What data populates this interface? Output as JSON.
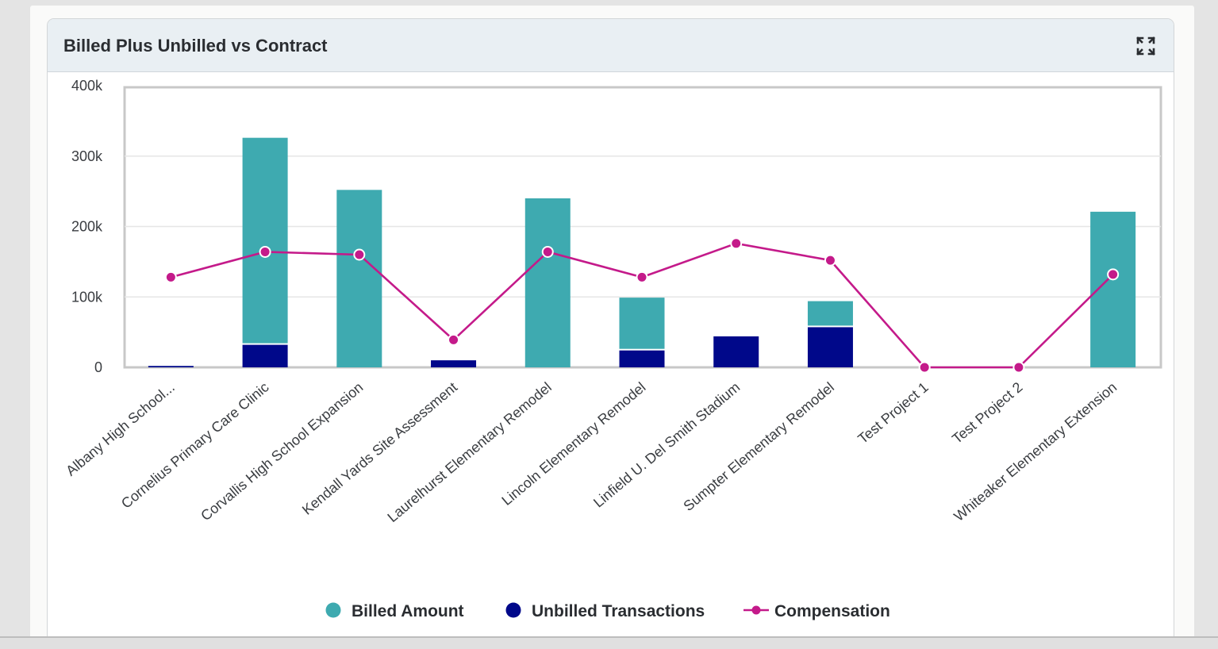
{
  "card": {
    "title": "Billed Plus Unbilled vs Contract"
  },
  "icons": {
    "expand": "expand-icon"
  },
  "colors": {
    "billed": "#3eaab0",
    "unbilled": "#00088a",
    "compensation": "#c41a8a",
    "grid": "#e6e6e6",
    "axis": "#c8c8c8",
    "text": "#2a2d31"
  },
  "chart_data": {
    "type": "bar",
    "stacked": true,
    "title": "Billed Plus Unbilled vs Contract",
    "categories": [
      "Albany High School...",
      "Cornelius Primary Care Clinic",
      "Corvallis High School Expansion",
      "Kendall Yards Site Assessment",
      "Laurelhurst Elementary Remodel",
      "Lincoln Elementary Remodel",
      "Linfield U. Del Smith Stadium",
      "Sumpter Elementary Remodel",
      "Test Project 1",
      "Test Project 2",
      "Whiteaker Elementary Extension"
    ],
    "series": [
      {
        "name": "Unbilled Transactions",
        "kind": "bar",
        "values": [
          2000,
          32000,
          0,
          10000,
          0,
          24000,
          44000,
          57000,
          0,
          0,
          0
        ]
      },
      {
        "name": "Billed Amount",
        "kind": "bar",
        "values": [
          0,
          294000,
          252000,
          0,
          240000,
          75000,
          0,
          37000,
          0,
          0,
          221000
        ]
      },
      {
        "name": "Compensation",
        "kind": "line",
        "values": [
          128000,
          164000,
          160000,
          39000,
          164000,
          128000,
          176000,
          152000,
          0,
          0,
          132000
        ]
      }
    ],
    "y_ticks": [
      "0",
      "100k",
      "200k",
      "300k",
      "400k"
    ],
    "ylim": [
      0,
      400000
    ],
    "grid": true,
    "legend": {
      "position": "bottom",
      "items": [
        "Billed Amount",
        "Unbilled Transactions",
        "Compensation"
      ]
    }
  }
}
